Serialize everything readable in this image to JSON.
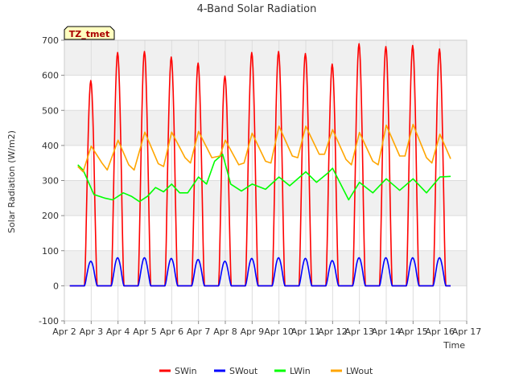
{
  "chart_data": {
    "type": "line",
    "title": "4-Band Solar Radiation",
    "annotation": "TZ_tmet",
    "xlabel": "Time",
    "ylabel": "Solar Radiation (W/m2)",
    "x_ticks": [
      "Apr 2",
      "Apr 3",
      "Apr 4",
      "Apr 5",
      "Apr 6",
      "Apr 7",
      "Apr 8",
      "Apr 9",
      "Apr 10",
      "Apr 11",
      "Apr 12",
      "Apr 13",
      "Apr 14",
      "Apr 15",
      "Apr 16",
      "Apr 17"
    ],
    "y_ticks": [
      -100,
      0,
      100,
      200,
      300,
      400,
      500,
      600,
      700
    ],
    "xlim": [
      "Apr 2",
      "Apr 17"
    ],
    "ylim": [
      -100,
      700
    ],
    "grid": true,
    "legend_position": "bottom",
    "series": [
      {
        "name": "SWin",
        "color": "#ff0000",
        "daily_peak": [
          585,
          665,
          668,
          652,
          635,
          598,
          665,
          668,
          662,
          632,
          690,
          682,
          685,
          675
        ]
      },
      {
        "name": "SWout",
        "color": "#0000ff",
        "daily_peak": [
          70,
          80,
          80,
          78,
          75,
          70,
          78,
          80,
          78,
          72,
          80,
          80,
          80,
          80
        ]
      },
      {
        "name": "LWin",
        "color": "#00ff00",
        "points": [
          [
            "Apr 2.5",
            345
          ],
          [
            "Apr 2.7",
            330
          ],
          [
            "Apr 2.9",
            295
          ],
          [
            "Apr 3.1",
            260
          ],
          [
            "Apr 3.5",
            250
          ],
          [
            "Apr 3.8",
            245
          ],
          [
            "Apr 4.2",
            265
          ],
          [
            "Apr 4.5",
            255
          ],
          [
            "Apr 4.8",
            240
          ],
          [
            "Apr 5.1",
            255
          ],
          [
            "Apr 5.4",
            280
          ],
          [
            "Apr 5.7",
            268
          ],
          [
            "Apr 6.0",
            290
          ],
          [
            "Apr 6.3",
            265
          ],
          [
            "Apr 6.6",
            265
          ],
          [
            "Apr 7.0",
            310
          ],
          [
            "Apr 7.3",
            290
          ],
          [
            "Apr 7.6",
            355
          ],
          [
            "Apr 7.9",
            375
          ],
          [
            "Apr 8.2",
            290
          ],
          [
            "Apr 8.6",
            270
          ],
          [
            "Apr 9.0",
            290
          ],
          [
            "Apr 9.5",
            275
          ],
          [
            "Apr 10.0",
            310
          ],
          [
            "Apr 10.4",
            285
          ],
          [
            "Apr 11.0",
            325
          ],
          [
            "Apr 11.4",
            295
          ],
          [
            "Apr 11.8",
            320
          ],
          [
            "Apr 12.0",
            335
          ],
          [
            "Apr 12.3",
            290
          ],
          [
            "Apr 12.6",
            245
          ],
          [
            "Apr 13.0",
            295
          ],
          [
            "Apr 13.5",
            265
          ],
          [
            "Apr 14.0",
            305
          ],
          [
            "Apr 14.5",
            272
          ],
          [
            "Apr 15.0",
            305
          ],
          [
            "Apr 15.5",
            265
          ],
          [
            "Apr 16.0",
            310
          ],
          [
            "Apr 16.4",
            312
          ]
        ]
      },
      {
        "name": "LWout",
        "color": "#ffa500",
        "points": [
          [
            "Apr 2.5",
            340
          ],
          [
            "Apr 2.7",
            325
          ],
          [
            "Apr 3.0",
            398
          ],
          [
            "Apr 3.4",
            350
          ],
          [
            "Apr 3.6",
            330
          ],
          [
            "Apr 4.0",
            415
          ],
          [
            "Apr 4.4",
            345
          ],
          [
            "Apr 4.6",
            330
          ],
          [
            "Apr 5.0",
            438
          ],
          [
            "Apr 5.5",
            348
          ],
          [
            "Apr 5.7",
            340
          ],
          [
            "Apr 6.0",
            438
          ],
          [
            "Apr 6.5",
            365
          ],
          [
            "Apr 6.7",
            350
          ],
          [
            "Apr 7.0",
            440
          ],
          [
            "Apr 7.5",
            365
          ],
          [
            "Apr 7.8",
            370
          ],
          [
            "Apr 8.0",
            415
          ],
          [
            "Apr 8.5",
            345
          ],
          [
            "Apr 8.7",
            350
          ],
          [
            "Apr 9.0",
            435
          ],
          [
            "Apr 9.5",
            355
          ],
          [
            "Apr 9.7",
            350
          ],
          [
            "Apr 10.0",
            455
          ],
          [
            "Apr 10.5",
            370
          ],
          [
            "Apr 10.7",
            365
          ],
          [
            "Apr 11.0",
            455
          ],
          [
            "Apr 11.5",
            375
          ],
          [
            "Apr 11.7",
            375
          ],
          [
            "Apr 12.0",
            445
          ],
          [
            "Apr 12.5",
            360
          ],
          [
            "Apr 12.7",
            345
          ],
          [
            "Apr 13.0",
            437
          ],
          [
            "Apr 13.5",
            355
          ],
          [
            "Apr 13.7",
            345
          ],
          [
            "Apr 14.0",
            458
          ],
          [
            "Apr 14.5",
            370
          ],
          [
            "Apr 14.7",
            370
          ],
          [
            "Apr 15.0",
            460
          ],
          [
            "Apr 15.5",
            365
          ],
          [
            "Apr 15.7",
            350
          ],
          [
            "Apr 16.0",
            432
          ],
          [
            "Apr 16.4",
            362
          ]
        ]
      }
    ]
  }
}
